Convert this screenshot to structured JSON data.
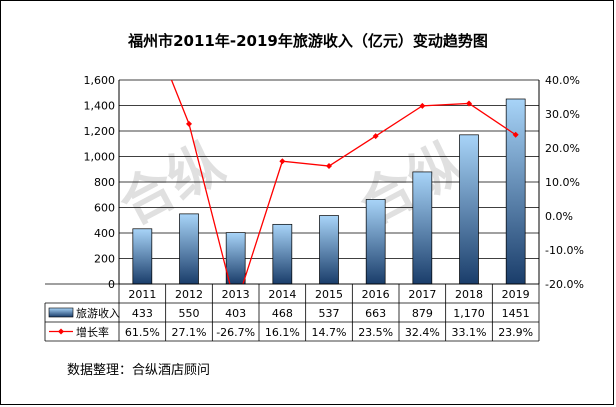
{
  "title": "福州市2011年-2019年旅游收入（亿元）变动趋势图",
  "source_note": "数据整理：合纵酒店顾问",
  "watermark": "合纵",
  "chart_data": {
    "type": "bar",
    "categories": [
      "2011",
      "2012",
      "2013",
      "2014",
      "2015",
      "2016",
      "2017",
      "2018",
      "2019"
    ],
    "series": [
      {
        "name": "旅游收入",
        "type": "bar",
        "axis": "left",
        "values": [
          433,
          550,
          403,
          468,
          537,
          663,
          879,
          1170,
          1451
        ],
        "labels": [
          "433",
          "550",
          "403",
          "468",
          "537",
          "663",
          "879",
          "1,170",
          "1451"
        ]
      },
      {
        "name": "增长率",
        "type": "line",
        "axis": "right",
        "values": [
          61.5,
          27.1,
          -26.7,
          16.1,
          14.7,
          23.5,
          32.4,
          33.1,
          23.9
        ],
        "labels": [
          "61.5%",
          "27.1%",
          "-26.7%",
          "16.1%",
          "14.7%",
          "23.5%",
          "32.4%",
          "33.1%",
          "23.9%"
        ]
      }
    ],
    "y_left": {
      "min": 0,
      "max": 1600,
      "ticks": [
        0,
        200,
        400,
        600,
        800,
        1000,
        1200,
        1400,
        1600
      ],
      "tick_labels": [
        "0",
        "200",
        "400",
        "600",
        "800",
        "1,000",
        "1,200",
        "1,400",
        "1,600"
      ]
    },
    "y_right": {
      "min": -20,
      "max": 40,
      "ticks": [
        -20,
        -10,
        0,
        10,
        20,
        30,
        40
      ],
      "tick_labels": [
        "-20.0%",
        "-10.0%",
        "0.0%",
        "10.0%",
        "20.0%",
        "30.0%",
        "40.0%"
      ]
    },
    "grid": "horizontal",
    "legend": "data-table",
    "colors": {
      "bar_top": "#a8d4f8",
      "bar_bottom": "#1a3d6a",
      "line": "#ff0000",
      "grid": "#000000"
    }
  }
}
